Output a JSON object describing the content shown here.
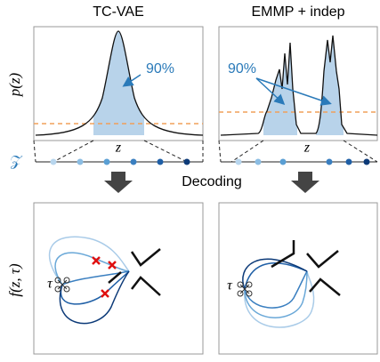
{
  "panels": [
    {
      "title": "TC-VAE",
      "annotation": "90%",
      "axis_label": "z",
      "agent_label": "τ"
    },
    {
      "title": "EMMP + indep",
      "annotation": "90%",
      "axis_label": "z",
      "agent_label": "τ"
    }
  ],
  "y_labels": {
    "top": "p(z)",
    "bottom": "f(z, τ)"
  },
  "latent_label": "𝒵",
  "arrow_label": "Decoding"
}
